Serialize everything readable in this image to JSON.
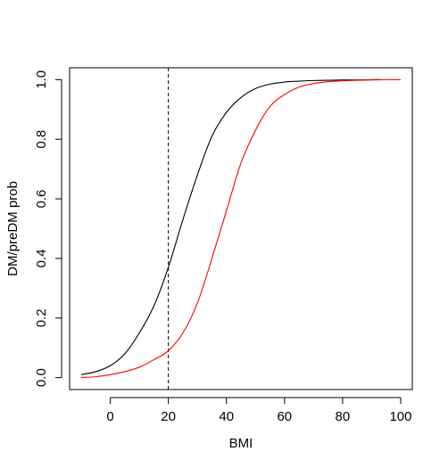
{
  "chart_data": {
    "type": "line",
    "title": "",
    "xlabel": "BMI",
    "ylabel": "DM/preDM prob",
    "xlim": [
      -14,
      104
    ],
    "ylim": [
      -0.04,
      1.04
    ],
    "xticks": [
      0,
      20,
      40,
      60,
      80,
      100
    ],
    "yticks": [
      0.0,
      0.2,
      0.4,
      0.6,
      0.8,
      1.0
    ],
    "xtick_labels": [
      "0",
      "20",
      "40",
      "60",
      "80",
      "100"
    ],
    "ytick_labels": [
      "0.0",
      "0.2",
      "0.4",
      "0.6",
      "0.8",
      "1.0"
    ],
    "grid": false,
    "reference_lines": [
      {
        "orientation": "vertical",
        "x": 20,
        "style": "dashed",
        "color": "#000000"
      }
    ],
    "series": [
      {
        "color": "#000000",
        "x": [
          -10,
          -5,
          0,
          5,
          10,
          15,
          20,
          25,
          30,
          35,
          40,
          45,
          50,
          55,
          60,
          65,
          70,
          75,
          80,
          85,
          90,
          93
        ],
        "y": [
          0.01,
          0.02,
          0.04,
          0.08,
          0.15,
          0.24,
          0.37,
          0.53,
          0.68,
          0.81,
          0.89,
          0.94,
          0.97,
          0.985,
          0.992,
          0.995,
          0.997,
          0.998,
          0.999,
          0.999,
          1.0,
          1.0
        ]
      },
      {
        "color": "#ff0000",
        "x": [
          -10,
          -5,
          0,
          5,
          10,
          15,
          20,
          25,
          30,
          35,
          40,
          45,
          50,
          55,
          60,
          65,
          70,
          75,
          80,
          85,
          90,
          95,
          100
        ],
        "y": [
          0.0,
          0.003,
          0.01,
          0.02,
          0.035,
          0.06,
          0.09,
          0.15,
          0.25,
          0.4,
          0.56,
          0.72,
          0.83,
          0.91,
          0.95,
          0.975,
          0.987,
          0.993,
          0.996,
          0.998,
          0.999,
          1.0,
          1.0
        ]
      }
    ]
  }
}
